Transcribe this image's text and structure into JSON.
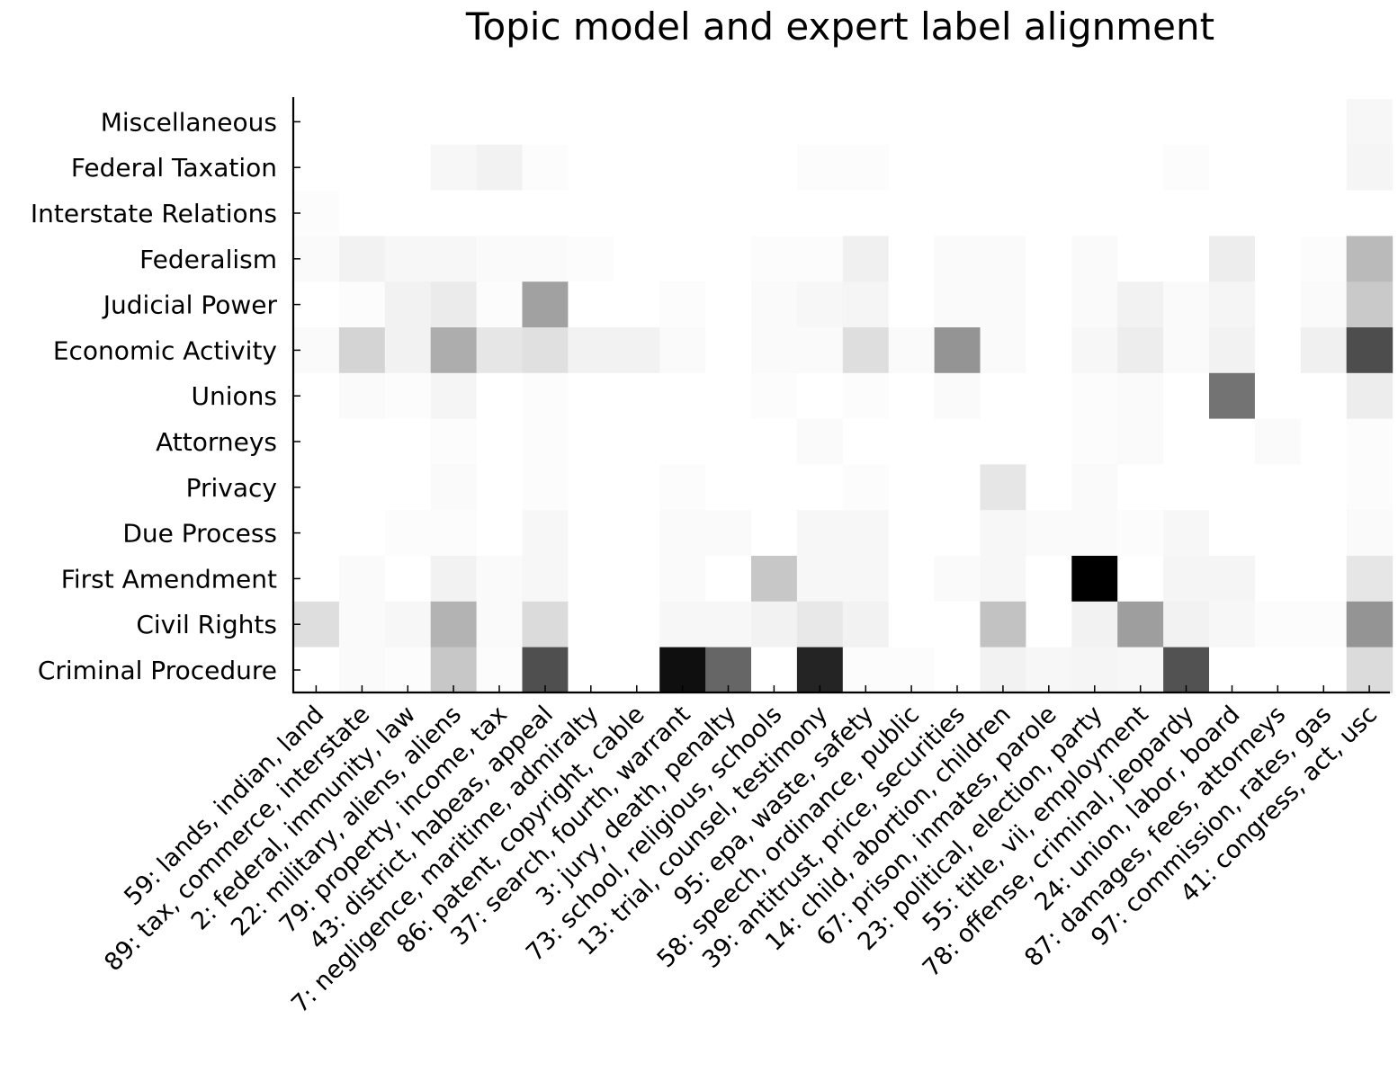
{
  "chart_data": {
    "type": "heatmap",
    "title": "Topic model and expert label alignment",
    "xlabel": "",
    "ylabel": "",
    "colormap": "greys",
    "value_range": [
      0,
      1
    ],
    "x_categories": [
      "59: lands, indian, land",
      "89: tax, commerce, interstate",
      "2: federal, immunity, law",
      "22: military, aliens, aliens",
      "79: property, income, tax",
      "43: district, habeas, appeal",
      "7: negligence, maritime, admiralty",
      "86: patent, copyright, cable",
      "37: search, fourth, warrant",
      "3: jury, death, penalty",
      "73: school, religious, schools",
      "13: trial, counsel, testimony",
      "95: epa, waste, safety",
      "58: speech, ordinance, public",
      "39: antitrust, price, securities",
      "14: child, abortion, children",
      "67: prison, inmates, parole",
      "23: political, election, party",
      "55: title, vii, employment",
      "78: offense, criminal, jeopardy",
      "24: union, labor, board",
      "87: damages, fees, attorneys",
      "97: commission, rates, gas",
      "41: congress, act, usc"
    ],
    "y_categories": [
      "Miscellaneous",
      "Federal Taxation",
      "Interstate Relations",
      "Federalism",
      "Judicial Power",
      "Economic Activity",
      "Unions",
      "Attorneys",
      "Privacy",
      "Due Process",
      "First Amendment",
      "Civil Rights",
      "Criminal Procedure"
    ],
    "values": [
      [
        0.0,
        0.0,
        0.0,
        0.0,
        0.0,
        0.0,
        0.0,
        0.0,
        0.0,
        0.0,
        0.0,
        0.0,
        0.0,
        0.0,
        0.0,
        0.0,
        0.0,
        0.0,
        0.0,
        0.0,
        0.0,
        0.0,
        0.0,
        0.03
      ],
      [
        0.0,
        0.0,
        0.0,
        0.03,
        0.05,
        0.01,
        0.0,
        0.0,
        0.0,
        0.0,
        0.0,
        0.01,
        0.01,
        0.0,
        0.0,
        0.0,
        0.0,
        0.0,
        0.0,
        0.01,
        0.0,
        0.0,
        0.0,
        0.04
      ],
      [
        0.01,
        0.0,
        0.0,
        0.0,
        0.0,
        0.0,
        0.0,
        0.0,
        0.0,
        0.0,
        0.0,
        0.0,
        0.0,
        0.0,
        0.0,
        0.0,
        0.0,
        0.0,
        0.0,
        0.0,
        0.0,
        0.0,
        0.0,
        0.0
      ],
      [
        0.02,
        0.05,
        0.03,
        0.03,
        0.02,
        0.02,
        0.01,
        0.0,
        0.0,
        0.0,
        0.01,
        0.01,
        0.06,
        0.0,
        0.02,
        0.02,
        0.0,
        0.02,
        0.0,
        0.0,
        0.07,
        0.0,
        0.01,
        0.27
      ],
      [
        0.0,
        0.01,
        0.05,
        0.08,
        0.01,
        0.37,
        0.0,
        0.0,
        0.01,
        0.0,
        0.02,
        0.03,
        0.04,
        0.0,
        0.02,
        0.02,
        0.0,
        0.02,
        0.05,
        0.02,
        0.04,
        0.0,
        0.02,
        0.21
      ],
      [
        0.02,
        0.17,
        0.05,
        0.32,
        0.1,
        0.12,
        0.05,
        0.05,
        0.02,
        0.0,
        0.02,
        0.02,
        0.13,
        0.02,
        0.42,
        0.02,
        0.0,
        0.03,
        0.07,
        0.02,
        0.05,
        0.0,
        0.06,
        0.7
      ],
      [
        0.0,
        0.02,
        0.01,
        0.04,
        0.0,
        0.01,
        0.0,
        0.0,
        0.0,
        0.0,
        0.01,
        0.0,
        0.01,
        0.0,
        0.02,
        0.0,
        0.0,
        0.01,
        0.02,
        0.0,
        0.55,
        0.0,
        0.0,
        0.07
      ],
      [
        0.0,
        0.0,
        0.0,
        0.01,
        0.0,
        0.01,
        0.0,
        0.0,
        0.0,
        0.0,
        0.0,
        0.02,
        0.0,
        0.0,
        0.0,
        0.0,
        0.0,
        0.01,
        0.02,
        0.0,
        0.0,
        0.02,
        0.0,
        0.01
      ],
      [
        0.0,
        0.0,
        0.0,
        0.02,
        0.0,
        0.01,
        0.0,
        0.0,
        0.01,
        0.0,
        0.0,
        0.0,
        0.01,
        0.0,
        0.0,
        0.1,
        0.0,
        0.02,
        0.0,
        0.0,
        0.0,
        0.0,
        0.0,
        0.01
      ],
      [
        0.0,
        0.0,
        0.01,
        0.01,
        0.0,
        0.03,
        0.0,
        0.0,
        0.02,
        0.02,
        0.0,
        0.03,
        0.03,
        0.0,
        0.0,
        0.03,
        0.02,
        0.02,
        0.01,
        0.03,
        0.0,
        0.0,
        0.0,
        0.02
      ],
      [
        0.0,
        0.02,
        0.0,
        0.05,
        0.02,
        0.03,
        0.0,
        0.0,
        0.02,
        0.0,
        0.22,
        0.03,
        0.03,
        0.0,
        0.02,
        0.03,
        0.0,
        1.0,
        0.0,
        0.04,
        0.04,
        0.0,
        0.0,
        0.1
      ],
      [
        0.13,
        0.02,
        0.03,
        0.3,
        0.02,
        0.14,
        0.0,
        0.0,
        0.03,
        0.03,
        0.05,
        0.09,
        0.05,
        0.0,
        0.0,
        0.24,
        0.0,
        0.05,
        0.38,
        0.05,
        0.03,
        0.01,
        0.01,
        0.42
      ],
      [
        0.0,
        0.02,
        0.01,
        0.22,
        0.01,
        0.69,
        0.0,
        0.0,
        0.94,
        0.6,
        0.0,
        0.86,
        0.01,
        0.01,
        0.0,
        0.05,
        0.03,
        0.04,
        0.03,
        0.68,
        0.0,
        0.0,
        0.0,
        0.14
      ]
    ]
  }
}
